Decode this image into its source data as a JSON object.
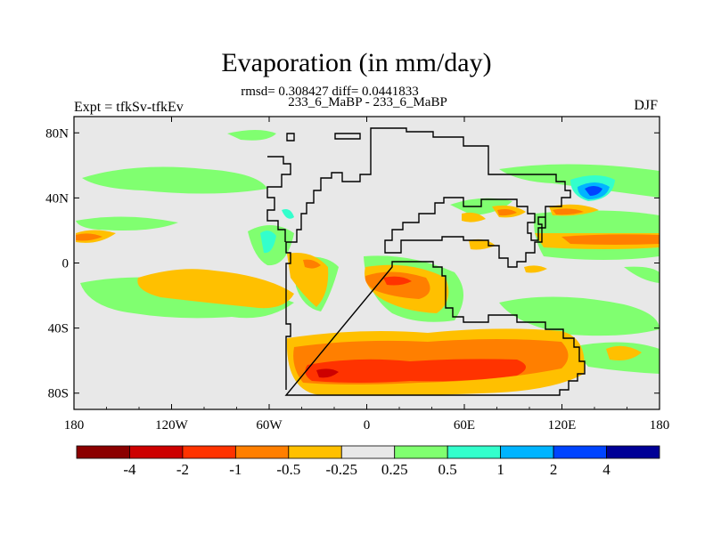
{
  "chart_data": {
    "type": "heatmap",
    "title": "Evaporation (in mm/day)",
    "stats_line": "rmsd= 0.308427 diff= 0.0441833",
    "case_line": "233_6_MaBP - 233_6_MaBP",
    "left_label": "Expt = tfkSv-tfkEv",
    "right_label": "DJF",
    "x_ticks": [
      "180",
      "120W",
      "60W",
      "0",
      "60E",
      "120E",
      "180"
    ],
    "y_ticks": [
      "80N",
      "40N",
      "0",
      "40S",
      "80S"
    ],
    "xlim": [
      -180,
      180
    ],
    "ylim": [
      -90,
      90
    ],
    "colorbar": {
      "colors": [
        "#8b0000",
        "#cd0000",
        "#ff3300",
        "#ff7f00",
        "#ffc000",
        "#e8e8e8",
        "#80ff70",
        "#33ffcc",
        "#00b4ff",
        "#0044ff",
        "#000096"
      ],
      "labels": [
        "-4",
        "-2",
        "-1",
        "-0.5",
        "-0.25",
        "0.25",
        "0.5",
        "1",
        "2",
        "4"
      ]
    }
  }
}
